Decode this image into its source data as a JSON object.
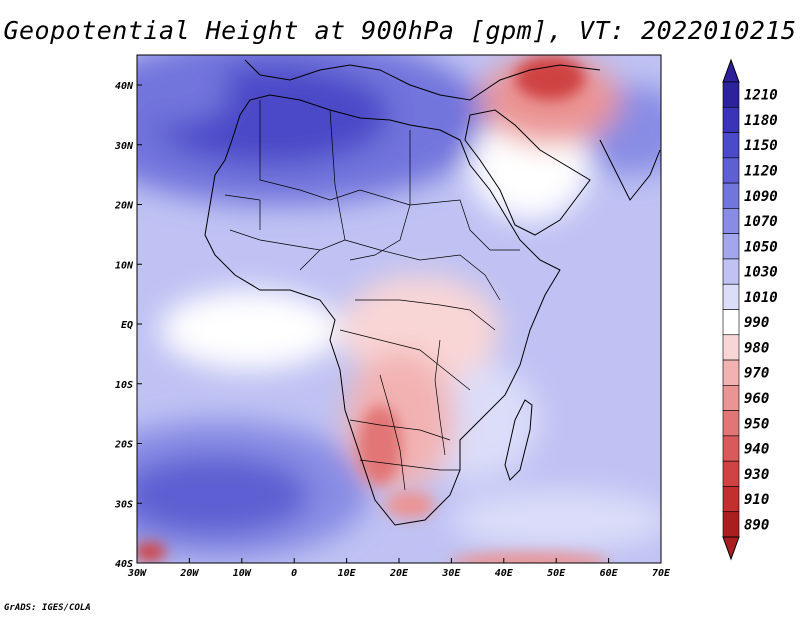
{
  "title": "Geopotential Height at 900hPa [gpm], VT: 2022010215",
  "credit": "GrADS: IGES/COLA",
  "x_ticks": [
    "30W",
    "20W",
    "10W",
    "0",
    "10E",
    "20E",
    "30E",
    "40E",
    "50E",
    "60E",
    "70E"
  ],
  "y_ticks": [
    "40N",
    "30N",
    "20N",
    "10N",
    "EQ",
    "10S",
    "20S",
    "30S",
    "40S"
  ],
  "colorbar": {
    "labels": [
      "1210",
      "1180",
      "1150",
      "1120",
      "1090",
      "1070",
      "1050",
      "1030",
      "1010",
      "990",
      "980",
      "970",
      "960",
      "950",
      "940",
      "930",
      "910",
      "890"
    ],
    "colors": [
      "#2b229c",
      "#3a35b8",
      "#4b4ac8",
      "#5d5fd2",
      "#7275dc",
      "#888ce4",
      "#a2a6ed",
      "#bfc2f3",
      "#dbddf9",
      "#ffffff",
      "#f9d6d6",
      "#f2b2b2",
      "#eb9494",
      "#e27676",
      "#d95a5a",
      "#cf4343",
      "#c22f2f",
      "#a91f1f"
    ]
  },
  "colors": {
    "land_border": "#000000",
    "frame": "#000000"
  }
}
